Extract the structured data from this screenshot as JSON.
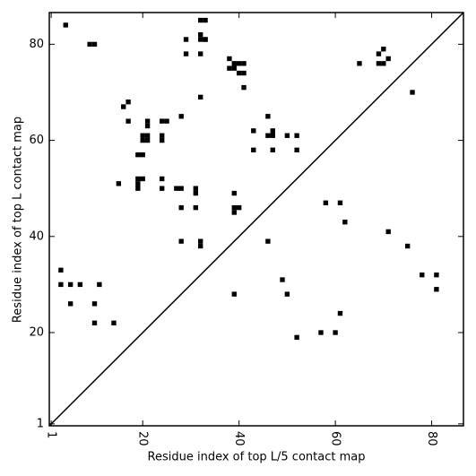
{
  "chart_data": {
    "type": "scatter",
    "xlabel": "Residue index of top L/5 contact map",
    "ylabel": "Residue index of top L contact map",
    "color": "#000000",
    "xlim": [
      0.6,
      86.6
    ],
    "ylim": [
      0.6,
      86.6
    ],
    "xticks": [
      1,
      20,
      40,
      60,
      80
    ],
    "yticks": [
      1,
      20,
      40,
      60,
      80
    ],
    "x": [
      4,
      9,
      10,
      29,
      29,
      32,
      33,
      32,
      33,
      32,
      33,
      32,
      32,
      38,
      39,
      38,
      39,
      40,
      41,
      40,
      41,
      41,
      65,
      70,
      69,
      69,
      70,
      71,
      76,
      17,
      16,
      17,
      20,
      21,
      20,
      21,
      21,
      21,
      24,
      25,
      24,
      24,
      28,
      46,
      46,
      47,
      47,
      43,
      50,
      52,
      43,
      47,
      52,
      19,
      20,
      19,
      19,
      19,
      20,
      15,
      24,
      24,
      27,
      28,
      31,
      31,
      39,
      28,
      31,
      39,
      39,
      40,
      58,
      61,
      62,
      71,
      75,
      28,
      32,
      32,
      46,
      3,
      3,
      5,
      7,
      11,
      5,
      10,
      49,
      50,
      39,
      78,
      81,
      81,
      10,
      14,
      61,
      57,
      60,
      52
    ],
    "y": [
      84,
      80,
      80,
      81,
      78,
      85,
      85,
      82,
      81,
      81,
      81,
      78,
      69,
      77,
      76,
      75,
      75,
      76,
      76,
      74,
      74,
      71,
      76,
      79,
      78,
      76,
      76,
      77,
      70,
      68,
      67,
      64,
      61,
      61,
      60,
      60,
      64,
      63,
      64,
      64,
      61,
      60,
      65,
      65,
      61,
      62,
      61,
      62,
      61,
      61,
      58,
      58,
      58,
      57,
      57,
      52,
      51,
      50,
      52,
      51,
      52,
      50,
      50,
      50,
      50,
      49,
      49,
      46,
      46,
      46,
      45,
      46,
      47,
      47,
      43,
      41,
      38,
      39,
      39,
      38,
      39,
      33,
      30,
      30,
      30,
      30,
      26,
      26,
      31,
      28,
      28,
      32,
      32,
      29,
      22,
      22,
      24,
      20,
      20,
      19
    ]
  }
}
